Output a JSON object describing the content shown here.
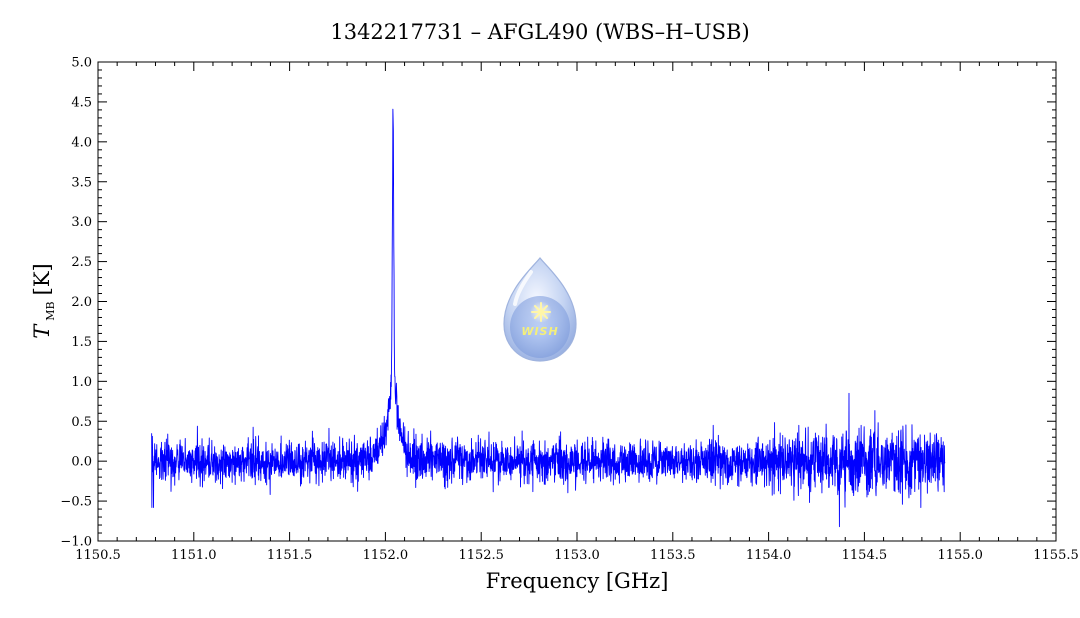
{
  "chart_data": {
    "type": "line",
    "title": "1342217731 – AFGL490 (WBS–H–USB)",
    "xlabel": "Frequency [GHz]",
    "ylabel": {
      "main": "T",
      "subscript": "MB",
      "unit": "[K]"
    },
    "xlim": [
      1150.5,
      1155.5
    ],
    "ylim": [
      -1.0,
      5.0
    ],
    "x_ticks": [
      1150.5,
      1151.0,
      1151.5,
      1152.0,
      1152.5,
      1153.0,
      1153.5,
      1154.0,
      1154.5,
      1155.0,
      1155.5
    ],
    "x_tick_labels": [
      "1150.5",
      "1151.0",
      "1151.5",
      "1152.0",
      "1152.5",
      "1153.0",
      "1153.5",
      "1154.0",
      "1154.5",
      "1155.0",
      "1155.5"
    ],
    "y_ticks": [
      -1.0,
      -0.5,
      0.0,
      0.5,
      1.0,
      1.5,
      2.0,
      2.5,
      3.0,
      3.5,
      4.0,
      4.5,
      5.0
    ],
    "y_tick_labels": [
      "−1.0",
      "−0.5",
      "0.0",
      "0.5",
      "1.0",
      "1.5",
      "2.0",
      "2.5",
      "3.0",
      "3.5",
      "4.0",
      "4.5",
      "5.0"
    ],
    "grid": false,
    "legend": "none",
    "series": [
      {
        "color": "#0000ff",
        "x_range": [
          1150.78,
          1154.92
        ],
        "noise_rms": 0.13,
        "features": [
          {
            "type": "emission-line",
            "center": 1152.04,
            "peak": 4.38,
            "wing_level": 1.0,
            "width": 0.05
          },
          {
            "type": "spike",
            "x": 1154.42,
            "y": 0.85
          },
          {
            "type": "spike",
            "x": 1154.37,
            "y": -0.82
          },
          {
            "type": "spike",
            "x": 1150.79,
            "y": -0.58
          }
        ]
      }
    ],
    "watermark": {
      "text": "WISH",
      "icon": "water-drop-logo-icon"
    }
  }
}
